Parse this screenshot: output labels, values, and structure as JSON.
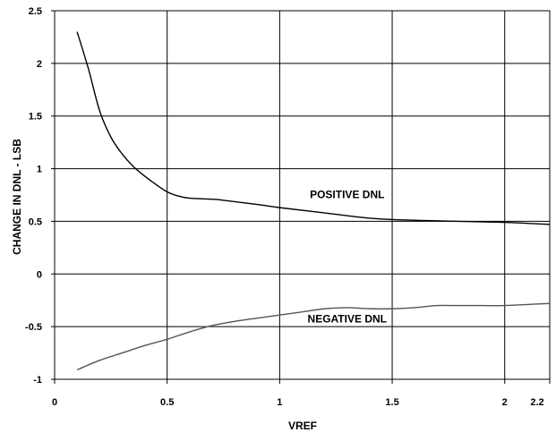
{
  "chart_data": {
    "type": "line",
    "title": "",
    "xlabel": "VREF",
    "ylabel": "CHANGE IN DNL - LSB",
    "xlim": [
      0,
      2.2
    ],
    "ylim": [
      -1,
      2.5
    ],
    "grid": true,
    "x_ticks": [
      {
        "value": 0,
        "label": "0"
      },
      {
        "value": 0.5,
        "label": "0.5"
      },
      {
        "value": 1,
        "label": "1"
      },
      {
        "value": 1.5,
        "label": "1.5"
      },
      {
        "value": 2,
        "label": "2"
      },
      {
        "value": 2.2,
        "label": "2.2"
      }
    ],
    "y_ticks": [
      {
        "value": -1,
        "label": "-1"
      },
      {
        "value": -0.5,
        "label": "-0.5"
      },
      {
        "value": 0,
        "label": "0"
      },
      {
        "value": 0.5,
        "label": "0.5"
      },
      {
        "value": 1,
        "label": "1"
      },
      {
        "value": 1.5,
        "label": "1.5"
      },
      {
        "value": 2,
        "label": "2"
      },
      {
        "value": 2.5,
        "label": "2.5"
      }
    ],
    "series": [
      {
        "name": "POSITIVE DNL",
        "color": "#000000",
        "label_at": [
          1.3,
          0.72
        ],
        "x": [
          0.1,
          0.15,
          0.2,
          0.25,
          0.3,
          0.35,
          0.4,
          0.45,
          0.5,
          0.55,
          0.6,
          0.7,
          0.75,
          0.9,
          1.0,
          1.2,
          1.4,
          1.6,
          1.8,
          2.0,
          2.2
        ],
        "y": [
          2.3,
          1.95,
          1.55,
          1.3,
          1.14,
          1.02,
          0.93,
          0.85,
          0.78,
          0.74,
          0.72,
          0.71,
          0.7,
          0.66,
          0.63,
          0.58,
          0.53,
          0.51,
          0.5,
          0.49,
          0.47
        ]
      },
      {
        "name": "NEGATIVE DNL",
        "color": "#555555",
        "label_at": [
          1.3,
          -0.46
        ],
        "x": [
          0.1,
          0.2,
          0.3,
          0.4,
          0.5,
          0.6,
          0.7,
          0.8,
          0.9,
          1.0,
          1.1,
          1.2,
          1.3,
          1.4,
          1.5,
          1.6,
          1.7,
          1.8,
          1.9,
          2.0,
          2.1,
          2.2
        ],
        "y": [
          -0.91,
          -0.82,
          -0.75,
          -0.68,
          -0.62,
          -0.55,
          -0.49,
          -0.45,
          -0.42,
          -0.39,
          -0.36,
          -0.33,
          -0.32,
          -0.33,
          -0.33,
          -0.32,
          -0.3,
          -0.3,
          -0.3,
          -0.3,
          -0.29,
          -0.28
        ]
      }
    ]
  }
}
